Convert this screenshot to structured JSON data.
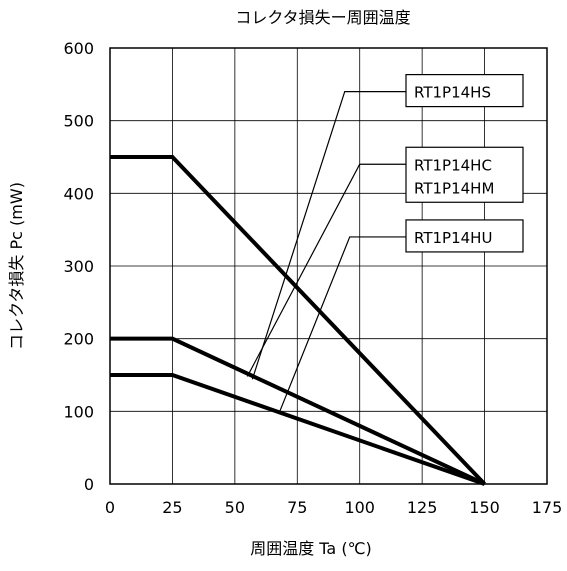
{
  "chart_data": {
    "type": "line",
    "title": "コレクタ損失ー周囲温度",
    "xlabel": "周囲温度 Ta (℃)",
    "ylabel": "コレクタ損失 Pc (mW)",
    "xlim": [
      0,
      175
    ],
    "ylim": [
      0,
      600
    ],
    "xticks": [
      0,
      25,
      50,
      75,
      100,
      125,
      150,
      175
    ],
    "yticks": [
      0,
      100,
      200,
      300,
      400,
      500,
      600
    ],
    "grid": true,
    "series": [
      {
        "labels": [
          "RT1P14HS"
        ],
        "x": [
          0,
          25,
          150
        ],
        "y": [
          450,
          450,
          0
        ],
        "leader_point": [
          57,
          144
        ],
        "leader_mid": [
          94,
          540
        ]
      },
      {
        "labels": [
          "RT1P14HC",
          "RT1P14HM"
        ],
        "x": [
          0,
          25,
          150
        ],
        "y": [
          200,
          200,
          0
        ],
        "leader_point": [
          55,
          148
        ],
        "leader_mid": [
          100,
          440
        ]
      },
      {
        "labels": [
          "RT1P14HU"
        ],
        "x": [
          0,
          25,
          150
        ],
        "y": [
          150,
          150,
          0
        ],
        "leader_point": [
          68,
          100
        ],
        "leader_mid": [
          96,
          340
        ]
      }
    ]
  }
}
